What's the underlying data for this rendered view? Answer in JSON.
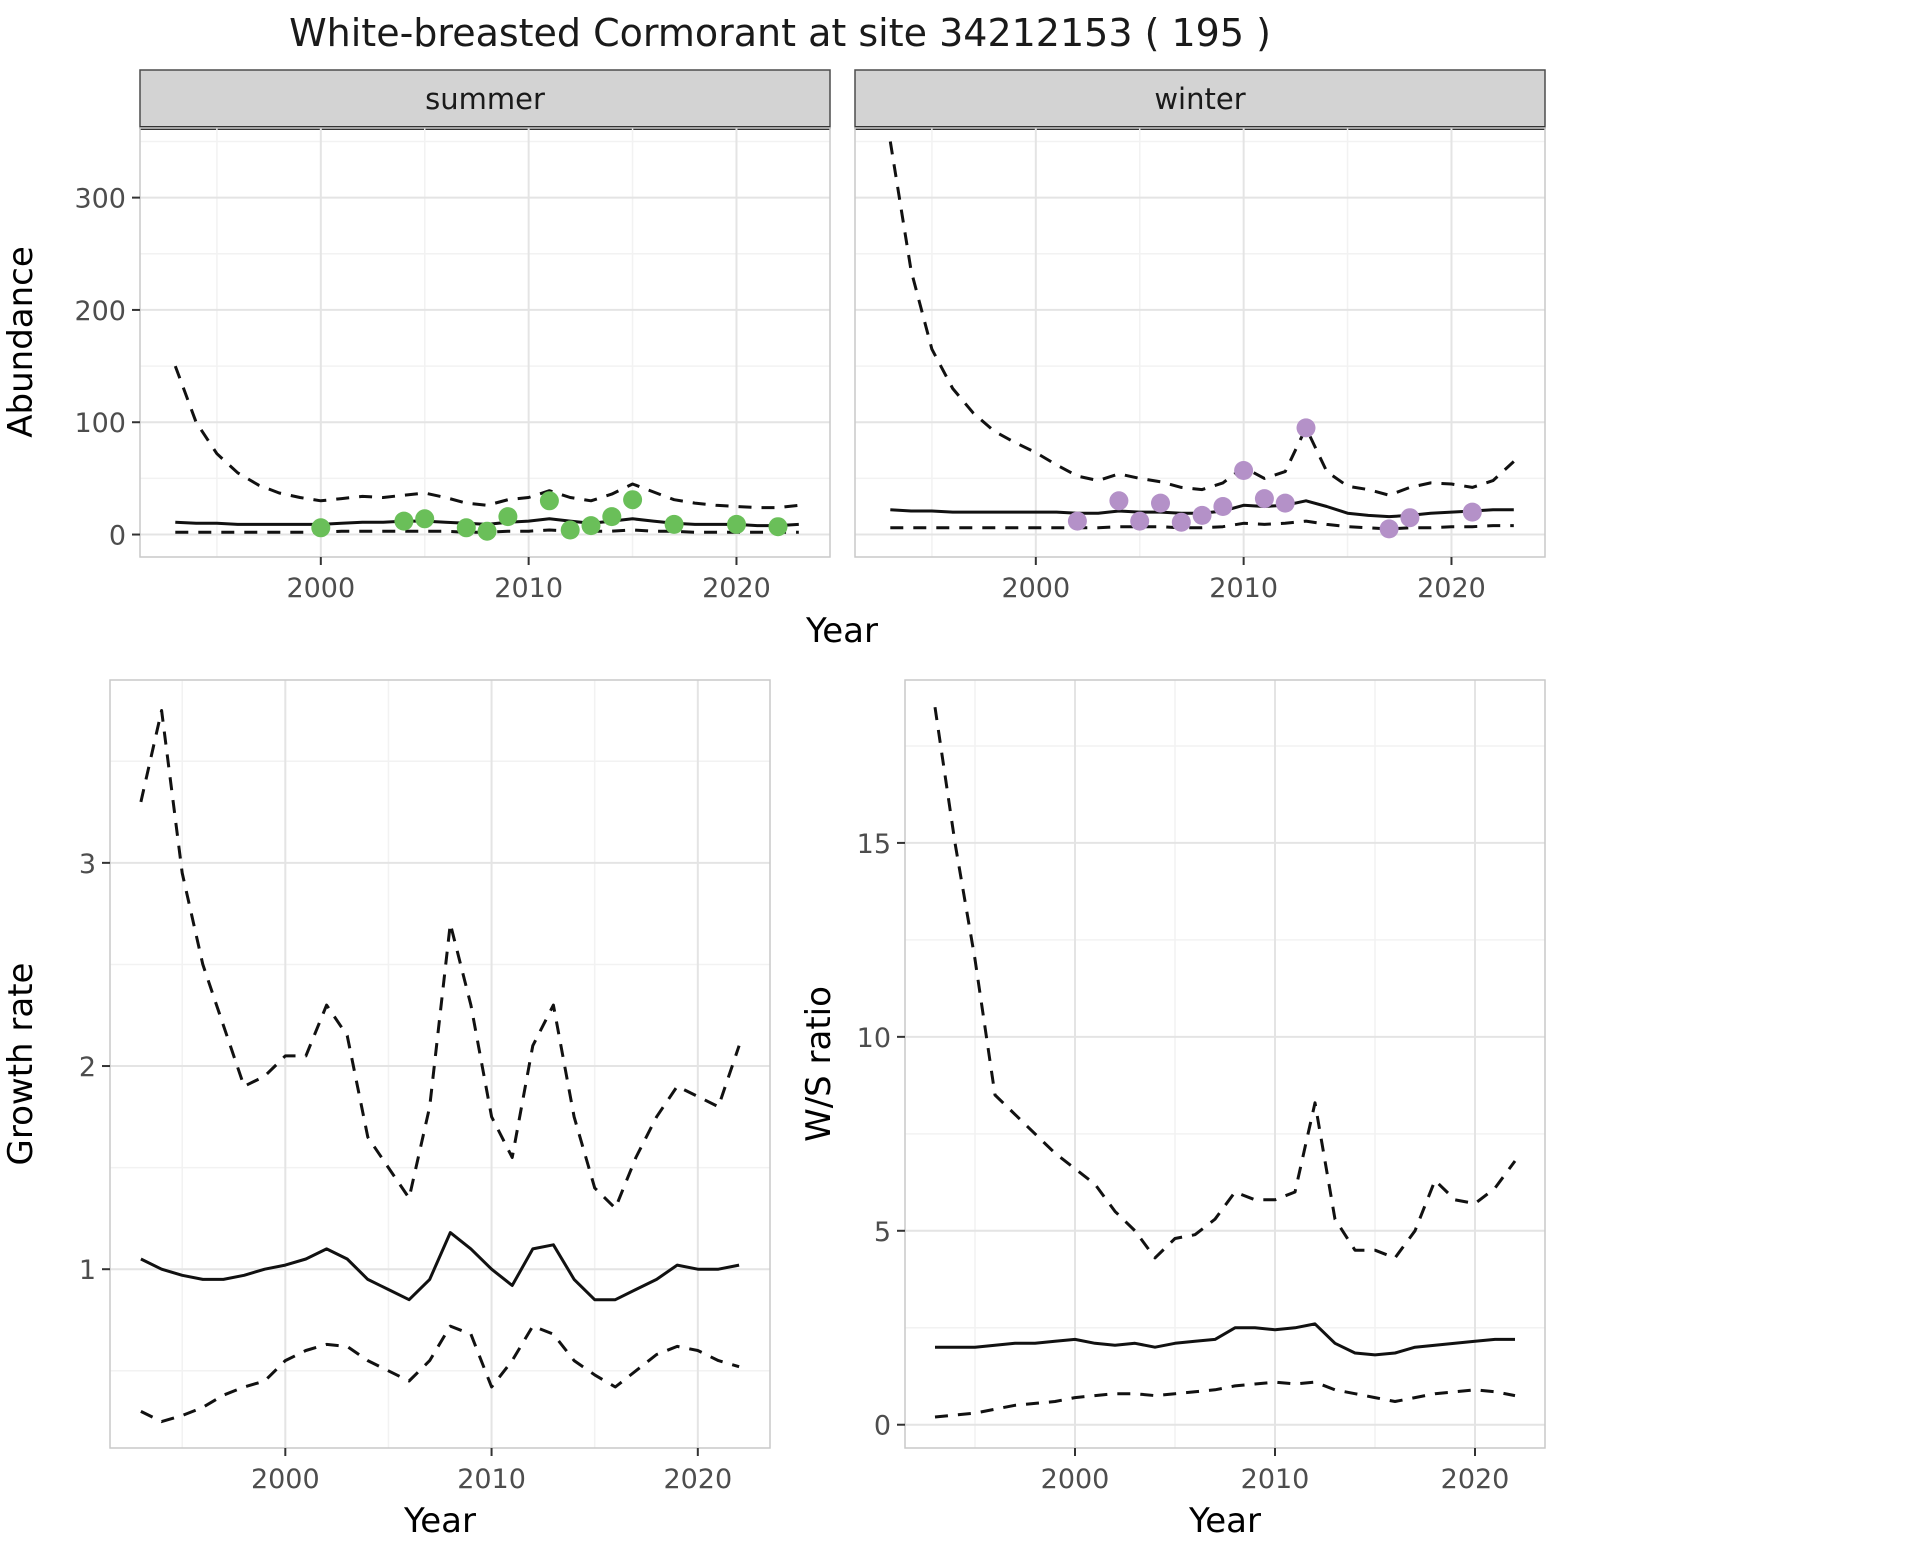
{
  "title": "White-breasted Cormorant at site 34212153 ( 195 )",
  "facets": [
    {
      "label": "summer"
    },
    {
      "label": "winter"
    }
  ],
  "axes": {
    "x_label": "Year",
    "abundance_label": "Abundance",
    "growth_label": "Growth rate",
    "ws_label": "W/S ratio"
  },
  "colors": {
    "line": "#111111",
    "grid_major": "#e4e4e4",
    "grid_minor": "#f2f2f2",
    "panel_border": "#c9c9c9",
    "strip_bg": "#d3d3d3",
    "strip_border": "#4d4d4d",
    "strip_underline": "#333333",
    "tick_mark": "#333333",
    "tick_text": "#4d4d4d",
    "axis_text": "#000000",
    "summer_point": "#6abf59",
    "winter_point": "#b491c8"
  },
  "chart_data": [
    {
      "id": "summer",
      "type": "line",
      "title": "summer",
      "xlabel": "Year",
      "ylabel": "Abundance",
      "xlim": [
        1991.3,
        2024.5
      ],
      "ylim": [
        -20,
        362
      ],
      "xticks": [
        2000,
        2010,
        2020
      ],
      "yticks": [
        0,
        100,
        200,
        300
      ],
      "x_minor": [
        1995,
        2005,
        2015
      ],
      "y_minor": [
        50,
        150,
        250,
        350
      ],
      "grid": true,
      "legend": "none",
      "series": [
        {
          "name": "ci_upper",
          "style": "dashed",
          "x": [
            1993,
            1994,
            1995,
            1996,
            1997,
            1998,
            1999,
            2000,
            2001,
            2002,
            2003,
            2004,
            2005,
            2006,
            2007,
            2008,
            2009,
            2010,
            2011,
            2012,
            2013,
            2014,
            2015,
            2016,
            2017,
            2018,
            2019,
            2020,
            2021,
            2022,
            2023
          ],
          "y": [
            150,
            100,
            72,
            55,
            44,
            37,
            33,
            30,
            32,
            34,
            33,
            35,
            37,
            33,
            28,
            26,
            31,
            33,
            39,
            33,
            30,
            36,
            45,
            38,
            31,
            28,
            26,
            25,
            24,
            24,
            26
          ]
        },
        {
          "name": "mean",
          "style": "solid",
          "x": [
            1993,
            1994,
            1995,
            1996,
            1997,
            1998,
            1999,
            2000,
            2001,
            2002,
            2003,
            2004,
            2005,
            2006,
            2007,
            2008,
            2009,
            2010,
            2011,
            2012,
            2013,
            2014,
            2015,
            2016,
            2017,
            2018,
            2019,
            2020,
            2021,
            2022,
            2023
          ],
          "y": [
            11,
            10,
            10,
            9,
            9,
            9,
            9,
            9,
            10,
            11,
            11,
            12,
            12,
            11,
            10,
            9,
            11,
            12,
            14,
            12,
            10,
            12,
            14,
            12,
            10,
            9,
            9,
            9,
            8,
            8,
            9
          ]
        },
        {
          "name": "ci_lower",
          "style": "dashed",
          "x": [
            1993,
            1994,
            1995,
            1996,
            1997,
            1998,
            1999,
            2000,
            2001,
            2002,
            2003,
            2004,
            2005,
            2006,
            2007,
            2008,
            2009,
            2010,
            2011,
            2012,
            2013,
            2014,
            2015,
            2016,
            2017,
            2018,
            2019,
            2020,
            2021,
            2022,
            2023
          ],
          "y": [
            2,
            2,
            2,
            2,
            2,
            2,
            2,
            2,
            3,
            3,
            3,
            3,
            3,
            3,
            2,
            2,
            3,
            3,
            4,
            3,
            3,
            3,
            4,
            3,
            3,
            2,
            2,
            2,
            2,
            2,
            2
          ]
        }
      ],
      "points": {
        "name": "observed_counts",
        "color": "#6abf59",
        "x": [
          2000,
          2004,
          2005,
          2007,
          2008,
          2009,
          2011,
          2012,
          2013,
          2014,
          2015,
          2017,
          2020,
          2022
        ],
        "y": [
          6,
          12,
          14,
          6,
          3,
          16,
          30,
          4,
          8,
          16,
          31,
          9,
          9,
          7
        ]
      }
    },
    {
      "id": "winter",
      "type": "line",
      "title": "winter",
      "xlabel": "Year",
      "ylabel": "Abundance",
      "xlim": [
        1991.3,
        2024.5
      ],
      "ylim": [
        -20,
        362
      ],
      "xticks": [
        2000,
        2010,
        2020
      ],
      "yticks": [
        0,
        100,
        200,
        300
      ],
      "x_minor": [
        1995,
        2005,
        2015
      ],
      "y_minor": [
        50,
        150,
        250,
        350
      ],
      "grid": true,
      "legend": "none",
      "series": [
        {
          "name": "ci_upper",
          "style": "dashed",
          "x": [
            1993,
            1994,
            1995,
            1996,
            1997,
            1998,
            1999,
            2000,
            2001,
            2002,
            2003,
            2004,
            2005,
            2006,
            2007,
            2008,
            2009,
            2010,
            2011,
            2012,
            2013,
            2014,
            2015,
            2016,
            2017,
            2018,
            2019,
            2020,
            2021,
            2022,
            2023
          ],
          "y": [
            350,
            235,
            165,
            130,
            108,
            92,
            82,
            73,
            62,
            52,
            48,
            54,
            50,
            47,
            42,
            40,
            46,
            60,
            50,
            56,
            95,
            56,
            43,
            40,
            35,
            42,
            46,
            45,
            42,
            48,
            65
          ]
        },
        {
          "name": "mean",
          "style": "solid",
          "x": [
            1993,
            1994,
            1995,
            1996,
            1997,
            1998,
            1999,
            2000,
            2001,
            2002,
            2003,
            2004,
            2005,
            2006,
            2007,
            2008,
            2009,
            2010,
            2011,
            2012,
            2013,
            2014,
            2015,
            2016,
            2017,
            2018,
            2019,
            2020,
            2021,
            2022,
            2023
          ],
          "y": [
            22,
            21,
            21,
            20,
            20,
            20,
            20,
            20,
            20,
            19,
            19,
            21,
            20,
            20,
            19,
            19,
            21,
            26,
            25,
            26,
            30,
            25,
            19,
            17,
            16,
            17,
            19,
            20,
            21,
            22,
            22
          ]
        },
        {
          "name": "ci_lower",
          "style": "dashed",
          "x": [
            1993,
            1994,
            1995,
            1996,
            1997,
            1998,
            1999,
            2000,
            2001,
            2002,
            2003,
            2004,
            2005,
            2006,
            2007,
            2008,
            2009,
            2010,
            2011,
            2012,
            2013,
            2014,
            2015,
            2016,
            2017,
            2018,
            2019,
            2020,
            2021,
            2022,
            2023
          ],
          "y": [
            6,
            6,
            6,
            6,
            6,
            6,
            6,
            6,
            6,
            6,
            6,
            7,
            7,
            7,
            6,
            6,
            7,
            10,
            9,
            10,
            12,
            9,
            7,
            6,
            5,
            6,
            6,
            7,
            7,
            8,
            8
          ]
        }
      ],
      "points": {
        "name": "observed_counts",
        "color": "#b491c8",
        "x": [
          2002,
          2004,
          2005,
          2006,
          2007,
          2008,
          2009,
          2010,
          2011,
          2012,
          2013,
          2017,
          2018,
          2021
        ],
        "y": [
          12,
          30,
          12,
          28,
          11,
          17,
          25,
          57,
          32,
          28,
          95,
          5,
          15,
          20
        ]
      }
    },
    {
      "id": "growth",
      "type": "line",
      "title": "",
      "xlabel": "Year",
      "ylabel": "Growth rate",
      "xlim": [
        1991.5,
        2023.5
      ],
      "ylim": [
        0.12,
        3.9
      ],
      "xticks": [
        2000,
        2010,
        2020
      ],
      "yticks": [
        1,
        2,
        3
      ],
      "x_minor": [
        1995,
        2005,
        2015
      ],
      "y_minor": [
        0.5,
        1.5,
        2.5,
        3.5
      ],
      "grid": true,
      "legend": "none",
      "series": [
        {
          "name": "ci_upper",
          "style": "dashed",
          "x": [
            1993,
            1994,
            1995,
            1996,
            1997,
            1998,
            1999,
            2000,
            2001,
            2002,
            2003,
            2004,
            2005,
            2006,
            2007,
            2008,
            2009,
            2010,
            2011,
            2012,
            2013,
            2014,
            2015,
            2016,
            2017,
            2018,
            2019,
            2020,
            2021,
            2022
          ],
          "y": [
            3.3,
            3.75,
            2.95,
            2.5,
            2.2,
            1.9,
            1.95,
            2.05,
            2.05,
            2.3,
            2.15,
            1.65,
            1.5,
            1.35,
            1.8,
            2.7,
            2.3,
            1.75,
            1.55,
            2.1,
            2.3,
            1.75,
            1.4,
            1.3,
            1.55,
            1.75,
            1.9,
            1.85,
            1.8,
            2.1
          ]
        },
        {
          "name": "mean",
          "style": "solid",
          "x": [
            1993,
            1994,
            1995,
            1996,
            1997,
            1998,
            1999,
            2000,
            2001,
            2002,
            2003,
            2004,
            2005,
            2006,
            2007,
            2008,
            2009,
            2010,
            2011,
            2012,
            2013,
            2014,
            2015,
            2016,
            2017,
            2018,
            2019,
            2020,
            2021,
            2022
          ],
          "y": [
            1.05,
            1.0,
            0.97,
            0.95,
            0.95,
            0.97,
            1.0,
            1.02,
            1.05,
            1.1,
            1.05,
            0.95,
            0.9,
            0.85,
            0.95,
            1.18,
            1.1,
            1.0,
            0.92,
            1.1,
            1.12,
            0.95,
            0.85,
            0.85,
            0.9,
            0.95,
            1.02,
            1.0,
            1.0,
            1.02
          ]
        },
        {
          "name": "ci_lower",
          "style": "dashed",
          "x": [
            1993,
            1994,
            1995,
            1996,
            1997,
            1998,
            1999,
            2000,
            2001,
            2002,
            2003,
            2004,
            2005,
            2006,
            2007,
            2008,
            2009,
            2010,
            2011,
            2012,
            2013,
            2014,
            2015,
            2016,
            2017,
            2018,
            2019,
            2020,
            2021,
            2022
          ],
          "y": [
            0.3,
            0.25,
            0.28,
            0.32,
            0.38,
            0.42,
            0.45,
            0.55,
            0.6,
            0.63,
            0.62,
            0.55,
            0.5,
            0.45,
            0.55,
            0.72,
            0.68,
            0.42,
            0.55,
            0.72,
            0.68,
            0.55,
            0.48,
            0.42,
            0.5,
            0.58,
            0.62,
            0.6,
            0.55,
            0.52
          ]
        }
      ]
    },
    {
      "id": "ws",
      "type": "line",
      "title": "",
      "xlabel": "Year",
      "ylabel": "W/S ratio",
      "xlim": [
        1991.5,
        2023.5
      ],
      "ylim": [
        -0.6,
        19.2
      ],
      "xticks": [
        2000,
        2010,
        2020
      ],
      "yticks": [
        0,
        5,
        10,
        15
      ],
      "x_minor": [
        1995,
        2005,
        2015
      ],
      "y_minor": [
        2.5,
        7.5,
        12.5,
        17.5
      ],
      "grid": true,
      "legend": "none",
      "series": [
        {
          "name": "ci_upper",
          "style": "dashed",
          "x": [
            1993,
            1994,
            1995,
            1996,
            1997,
            1998,
            1999,
            2000,
            2001,
            2002,
            2003,
            2004,
            2005,
            2006,
            2007,
            2008,
            2009,
            2010,
            2011,
            2012,
            2013,
            2014,
            2015,
            2016,
            2017,
            2018,
            2019,
            2020,
            2021,
            2022
          ],
          "y": [
            18.5,
            15.0,
            12.0,
            8.5,
            8.0,
            7.5,
            7.0,
            6.6,
            6.2,
            5.5,
            5.0,
            4.3,
            4.8,
            4.9,
            5.3,
            6.0,
            5.8,
            5.8,
            6.0,
            8.3,
            5.3,
            4.5,
            4.5,
            4.3,
            5.0,
            6.3,
            5.8,
            5.7,
            6.1,
            6.8
          ]
        },
        {
          "name": "mean",
          "style": "solid",
          "x": [
            1993,
            1994,
            1995,
            1996,
            1997,
            1998,
            1999,
            2000,
            2001,
            2002,
            2003,
            2004,
            2005,
            2006,
            2007,
            2008,
            2009,
            2010,
            2011,
            2012,
            2013,
            2014,
            2015,
            2016,
            2017,
            2018,
            2019,
            2020,
            2021,
            2022
          ],
          "y": [
            2.0,
            2.0,
            2.0,
            2.05,
            2.1,
            2.1,
            2.15,
            2.2,
            2.1,
            2.05,
            2.1,
            2.0,
            2.1,
            2.15,
            2.2,
            2.5,
            2.5,
            2.45,
            2.5,
            2.6,
            2.1,
            1.85,
            1.8,
            1.85,
            2.0,
            2.05,
            2.1,
            2.15,
            2.2,
            2.2
          ]
        },
        {
          "name": "ci_lower",
          "style": "dashed",
          "x": [
            1993,
            1994,
            1995,
            1996,
            1997,
            1998,
            1999,
            2000,
            2001,
            2002,
            2003,
            2004,
            2005,
            2006,
            2007,
            2008,
            2009,
            2010,
            2011,
            2012,
            2013,
            2014,
            2015,
            2016,
            2017,
            2018,
            2019,
            2020,
            2021,
            2022
          ],
          "y": [
            0.2,
            0.25,
            0.3,
            0.4,
            0.5,
            0.55,
            0.6,
            0.7,
            0.75,
            0.8,
            0.8,
            0.75,
            0.8,
            0.85,
            0.9,
            1.0,
            1.05,
            1.1,
            1.05,
            1.1,
            0.9,
            0.8,
            0.7,
            0.6,
            0.7,
            0.8,
            0.85,
            0.9,
            0.85,
            0.75
          ]
        }
      ]
    }
  ]
}
